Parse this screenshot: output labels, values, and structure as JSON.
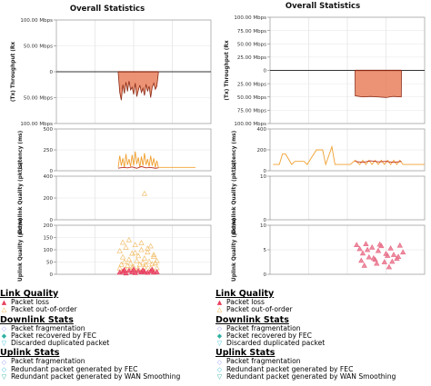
{
  "charts": [
    {
      "title": "Overall Statistics",
      "panels": [
        {
          "ylabel": "(Tx) Throughput (Rx",
          "tick_labels": [
            "100.00 Mbps",
            "50.00 Mbps",
            "0",
            "50.00 Mbps",
            "100.00 Mbps"
          ],
          "tick_values": [
            100,
            50,
            0,
            -50,
            -100
          ],
          "ylim": [
            -100,
            100
          ],
          "series": [
            {
              "type": "area",
              "color": "#e8805c",
              "stroke": "#8b2a15",
              "x": [
                0.4,
                0.41,
                0.42,
                0.43,
                0.44,
                0.45,
                0.46,
                0.47,
                0.48,
                0.49,
                0.5,
                0.51,
                0.52,
                0.53,
                0.54,
                0.55,
                0.56,
                0.57,
                0.58,
                0.59,
                0.6,
                0.61,
                0.62,
                0.63,
                0.64,
                0.65,
                0.66
              ],
              "y": [
                -2,
                -40,
                -55,
                -25,
                -42,
                -20,
                -38,
                -18,
                -35,
                -30,
                -44,
                -22,
                -48,
                -36,
                -26,
                -40,
                -32,
                -46,
                -24,
                -38,
                -28,
                -50,
                -30,
                -22,
                -34,
                -28,
                -2
              ]
            }
          ]
        },
        {
          "ylabel": "Latency (ms)",
          "tick_labels": [
            "500",
            "250",
            "0"
          ],
          "tick_values": [
            500,
            250,
            0
          ],
          "ylim": [
            0,
            500
          ],
          "series": [
            {
              "type": "line",
              "color": "#f0a030",
              "x": [
                0.4,
                0.41,
                0.42,
                0.43,
                0.44,
                0.45,
                0.46,
                0.47,
                0.48,
                0.49,
                0.5,
                0.51,
                0.52,
                0.53,
                0.54,
                0.55,
                0.56,
                0.57,
                0.58,
                0.59,
                0.6,
                0.61,
                0.62,
                0.63,
                0.64,
                0.65,
                0.66,
                0.7,
                0.75,
                0.8,
                0.85,
                0.9
              ],
              "y": [
                40,
                180,
                60,
                150,
                40,
                200,
                70,
                140,
                50,
                190,
                60,
                230,
                80,
                160,
                40,
                170,
                60,
                210,
                70,
                140,
                50,
                180,
                60,
                150,
                40,
                120,
                40,
                40,
                40,
                40,
                40,
                40
              ]
            },
            {
              "type": "line",
              "color": "#c03020",
              "x": [
                0.4,
                0.43,
                0.46,
                0.49,
                0.52,
                0.55,
                0.58,
                0.61,
                0.64,
                0.66
              ],
              "y": [
                30,
                40,
                35,
                45,
                30,
                50,
                35,
                40,
                30,
                35
              ]
            }
          ]
        },
        {
          "ylabel": "Downlink Quality (pkt/s)",
          "tick_labels": [
            "400",
            "200",
            "0"
          ],
          "tick_values": [
            400,
            200,
            0
          ],
          "ylim": [
            0,
            400
          ],
          "series": [
            {
              "type": "scatter",
              "marker": "triangle",
              "color": "#f2c070",
              "x": [
                0.57
              ],
              "y": [
                240
              ]
            }
          ]
        },
        {
          "ylabel": "Uplink Quality (pkt/s)",
          "tick_labels": [
            "200",
            "150",
            "100",
            "50",
            "0"
          ],
          "tick_values": [
            200,
            150,
            100,
            50,
            0
          ],
          "ylim": [
            0,
            200
          ],
          "series": [
            {
              "type": "scatter",
              "marker": "triangle",
              "color": "#f2c070",
              "x": [
                0.41,
                0.43,
                0.45,
                0.47,
                0.49,
                0.51,
                0.53,
                0.55,
                0.57,
                0.59,
                0.61,
                0.63,
                0.65,
                0.42,
                0.44,
                0.46,
                0.48,
                0.5,
                0.52,
                0.54,
                0.56,
                0.58,
                0.6,
                0.62,
                0.64,
                0.41,
                0.45,
                0.49,
                0.53,
                0.57,
                0.61,
                0.65,
                0.43,
                0.47,
                0.51,
                0.55,
                0.59,
                0.63
              ],
              "y": [
                95,
                70,
                110,
                60,
                85,
                120,
                75,
                100,
                65,
                90,
                115,
                80,
                55,
                40,
                50,
                35,
                45,
                30,
                55,
                40,
                48,
                38,
                52,
                42,
                46,
                25,
                20,
                28,
                22,
                30,
                24,
                26,
                130,
                140,
                88,
                128,
                105,
                72
              ]
            },
            {
              "type": "scatter",
              "marker": "triangle",
              "color": "#e84060",
              "x": [
                0.41,
                0.43,
                0.45,
                0.47,
                0.49,
                0.51,
                0.53,
                0.55,
                0.57,
                0.59,
                0.61,
                0.63,
                0.65,
                0.44,
                0.5,
                0.56,
                0.62
              ],
              "y": [
                8,
                12,
                5,
                15,
                10,
                6,
                14,
                9,
                11,
                7,
                13,
                8,
                10,
                18,
                20,
                16,
                19
              ]
            }
          ]
        }
      ]
    },
    {
      "title": "Overall Statistics",
      "panels": [
        {
          "ylabel": "(Tx) Throughput (Rx",
          "tick_labels": [
            "100.00 Mbps",
            "75.00 Mbps",
            "50.00 Mbps",
            "25.00 Mbps",
            "0",
            "25.00 Mbps",
            "50.00 Mbps",
            "75.00 Mbps",
            "100.00 Mbps"
          ],
          "tick_values": [
            100,
            75,
            50,
            25,
            0,
            -25,
            -50,
            -75,
            -100
          ],
          "ylim": [
            -100,
            100
          ],
          "series": [
            {
              "type": "area",
              "color": "#e8805c",
              "stroke": "#8b2a15",
              "x": [
                0.55,
                0.551,
                0.6,
                0.65,
                0.7,
                0.75,
                0.8,
                0.849,
                0.85
              ],
              "y": [
                0,
                -48,
                -50,
                -49,
                -50,
                -51,
                -49,
                -50,
                0
              ]
            }
          ]
        },
        {
          "ylabel": "Latency (ms)",
          "tick_labels": [
            "400",
            "200",
            "0"
          ],
          "tick_values": [
            400,
            200,
            0
          ],
          "ylim": [
            0,
            400
          ],
          "series": [
            {
              "type": "line",
              "color": "#f0a030",
              "x": [
                0.02,
                0.06,
                0.08,
                0.1,
                0.14,
                0.16,
                0.22,
                0.24,
                0.3,
                0.34,
                0.36,
                0.4,
                0.42,
                0.46,
                0.5,
                0.52,
                0.55,
                0.58,
                0.6,
                0.62,
                0.64,
                0.66,
                0.68,
                0.7,
                0.72,
                0.74,
                0.76,
                0.78,
                0.8,
                0.82,
                0.84,
                0.86,
                0.9,
                0.95,
                1.0
              ],
              "y": [
                60,
                60,
                160,
                160,
                60,
                90,
                90,
                60,
                200,
                200,
                60,
                230,
                60,
                60,
                60,
                60,
                100,
                60,
                100,
                60,
                100,
                60,
                100,
                60,
                100,
                60,
                100,
                60,
                100,
                60,
                100,
                60,
                60,
                60,
                60
              ]
            },
            {
              "type": "line",
              "color": "#c03020",
              "x": [
                0.55,
                0.6,
                0.65,
                0.7,
                0.75,
                0.8,
                0.85
              ],
              "y": [
                90,
                80,
                95,
                85,
                90,
                80,
                90
              ]
            }
          ]
        },
        {
          "ylabel": "Downlink Quality (pkt/s)",
          "tick_labels": [
            "10",
            "0"
          ],
          "tick_values": [
            10,
            0
          ],
          "ylim": [
            0,
            10
          ],
          "series": []
        },
        {
          "ylabel": "Uplink Quality (pkt/s)",
          "tick_labels": [
            "10",
            "5",
            "0"
          ],
          "tick_values": [
            10,
            5,
            0
          ],
          "ylim": [
            0,
            10
          ],
          "series": [
            {
              "type": "scatter",
              "marker": "triangle",
              "color": "#e8708a",
              "x": [
                0.56,
                0.58,
                0.6,
                0.62,
                0.64,
                0.66,
                0.68,
                0.7,
                0.72,
                0.74,
                0.76,
                0.78,
                0.8,
                0.82,
                0.84,
                0.86,
                0.59,
                0.63,
                0.67,
                0.71,
                0.75,
                0.79,
                0.83,
                0.61,
                0.69,
                0.77
              ],
              "y": [
                6.0,
                5.2,
                4.3,
                6.2,
                3.5,
                5.5,
                3.0,
                4.8,
                5.8,
                2.5,
                3.8,
                5.3,
                4.0,
                3.2,
                5.9,
                4.5,
                2.8,
                5.0,
                3.3,
                6.1,
                4.2,
                2.6,
                3.6,
                1.8,
                2.2,
                1.5
              ]
            }
          ]
        }
      ]
    }
  ],
  "legends": [
    {
      "sections": [
        {
          "title": "Link Quality",
          "items": [
            {
              "label": "Packet loss",
              "symbol": "▲",
              "color": "#e84060"
            },
            {
              "label": "Packet out-of-order",
              "symbol": "△",
              "color": "#f0b040"
            }
          ]
        },
        {
          "title": "Downlink Stats",
          "items": [
            {
              "label": "Packet fragmentation",
              "symbol": "◇",
              "color": "#9aa0ff"
            },
            {
              "label": "Packet recovered by FEC",
              "symbol": "◆",
              "color": "#30b0a0"
            },
            {
              "label": "Discarded duplicated packet",
              "symbol": "▽",
              "color": "#40c0e0"
            }
          ]
        },
        {
          "title": "Uplink Stats",
          "items": [
            {
              "label": "Packet fragmentation",
              "symbol": "◇",
              "color": "#9aa0ff"
            },
            {
              "label": "Redundant packet generated by FEC",
              "symbol": "◇",
              "color": "#40c0e0"
            },
            {
              "label": "Redundant packet generated by WAN Smoothing",
              "symbol": "▽",
              "color": "#30b0a0"
            }
          ]
        }
      ]
    },
    {
      "sections": [
        {
          "title": "Link Quality",
          "items": [
            {
              "label": "Packet loss",
              "symbol": "▲",
              "color": "#e84060"
            },
            {
              "label": "Packet out-of-order",
              "symbol": "△",
              "color": "#f0b040"
            }
          ]
        },
        {
          "title": "Downlink Stats",
          "items": [
            {
              "label": "Packet fragmentation",
              "symbol": "◇",
              "color": "#9aa0ff"
            },
            {
              "label": "Packet recovered by FEC",
              "symbol": "◆",
              "color": "#30b0a0"
            },
            {
              "label": "Discarded duplicated packet",
              "symbol": "▽",
              "color": "#40c0e0"
            }
          ]
        },
        {
          "title": "Uplink Stats",
          "items": [
            {
              "label": "Packet fragmentation",
              "symbol": "◇",
              "color": "#9aa0ff"
            },
            {
              "label": "Redundant packet generated by FEC",
              "symbol": "◇",
              "color": "#40c0e0"
            },
            {
              "label": "Redundant packet generated by WAN Smoothing",
              "symbol": "▽",
              "color": "#30b0a0"
            }
          ]
        }
      ]
    }
  ]
}
